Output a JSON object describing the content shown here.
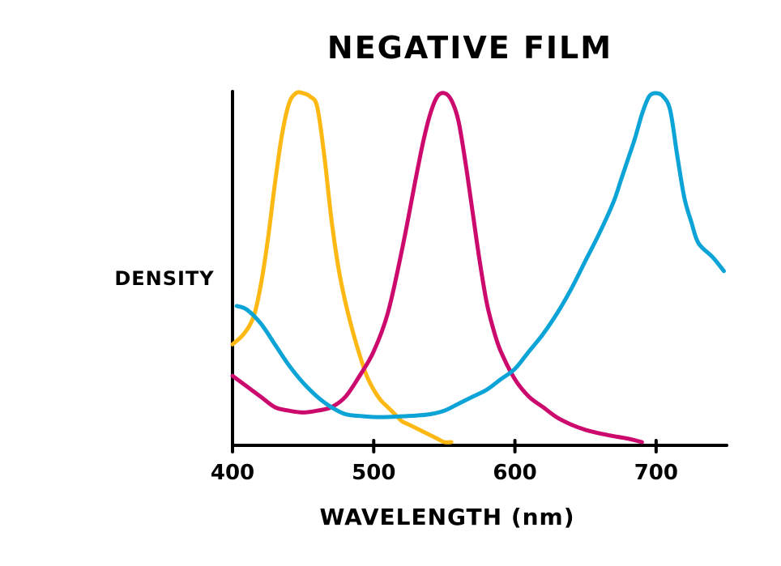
{
  "chart_data": {
    "type": "line",
    "title": "NEGATIVE FILM",
    "xlabel": "WAVELENGTH (nm)",
    "ylabel": "DENSITY",
    "xlim": [
      400,
      750
    ],
    "ylim": [
      0,
      1
    ],
    "xticks": [
      400,
      500,
      600,
      700
    ],
    "tick_labels": [
      "400",
      "500",
      "600",
      "700"
    ],
    "grid": false,
    "legend": "none",
    "series": [
      {
        "name": "yellow",
        "color": "#FDB813",
        "x": [
          400,
          408,
          415,
          420,
          425,
          430,
          435,
          440,
          445,
          450,
          455,
          460,
          465,
          470,
          475,
          480,
          485,
          490,
          495,
          500,
          505,
          510,
          515,
          520,
          525,
          530,
          535,
          540,
          545,
          550,
          555
        ],
        "y": [
          0.28,
          0.31,
          0.36,
          0.45,
          0.58,
          0.74,
          0.88,
          0.97,
          1.0,
          1.0,
          0.99,
          0.96,
          0.82,
          0.64,
          0.5,
          0.4,
          0.32,
          0.25,
          0.19,
          0.15,
          0.12,
          0.1,
          0.08,
          0.06,
          0.05,
          0.04,
          0.03,
          0.02,
          0.01,
          0.0,
          0.0
        ]
      },
      {
        "name": "magenta",
        "color": "#CC0A6E",
        "x": [
          400,
          410,
          420,
          430,
          440,
          450,
          460,
          470,
          480,
          490,
          500,
          510,
          520,
          530,
          535,
          540,
          545,
          550,
          555,
          560,
          565,
          570,
          575,
          580,
          585,
          590,
          600,
          610,
          620,
          630,
          640,
          650,
          660,
          670,
          680,
          690
        ],
        "y": [
          0.19,
          0.16,
          0.13,
          0.1,
          0.09,
          0.085,
          0.09,
          0.1,
          0.13,
          0.19,
          0.26,
          0.37,
          0.55,
          0.76,
          0.86,
          0.94,
          0.99,
          1.0,
          0.98,
          0.92,
          0.8,
          0.66,
          0.52,
          0.4,
          0.32,
          0.26,
          0.18,
          0.13,
          0.1,
          0.07,
          0.05,
          0.035,
          0.025,
          0.017,
          0.01,
          0.0
        ]
      },
      {
        "name": "cyan",
        "color": "#0CA3D7",
        "x": [
          403,
          410,
          420,
          430,
          440,
          450,
          460,
          470,
          480,
          490,
          500,
          510,
          520,
          530,
          540,
          550,
          560,
          570,
          580,
          590,
          600,
          610,
          620,
          630,
          640,
          650,
          660,
          670,
          675,
          680,
          685,
          690,
          695,
          700,
          705,
          710,
          715,
          720,
          725,
          730,
          740,
          748
        ],
        "y": [
          0.39,
          0.38,
          0.34,
          0.28,
          0.22,
          0.17,
          0.13,
          0.1,
          0.08,
          0.075,
          0.072,
          0.072,
          0.074,
          0.076,
          0.08,
          0.09,
          0.11,
          0.13,
          0.15,
          0.18,
          0.21,
          0.26,
          0.31,
          0.37,
          0.44,
          0.52,
          0.6,
          0.69,
          0.75,
          0.81,
          0.87,
          0.94,
          0.99,
          1.0,
          0.99,
          0.95,
          0.82,
          0.7,
          0.63,
          0.57,
          0.53,
          0.49
        ]
      }
    ]
  }
}
